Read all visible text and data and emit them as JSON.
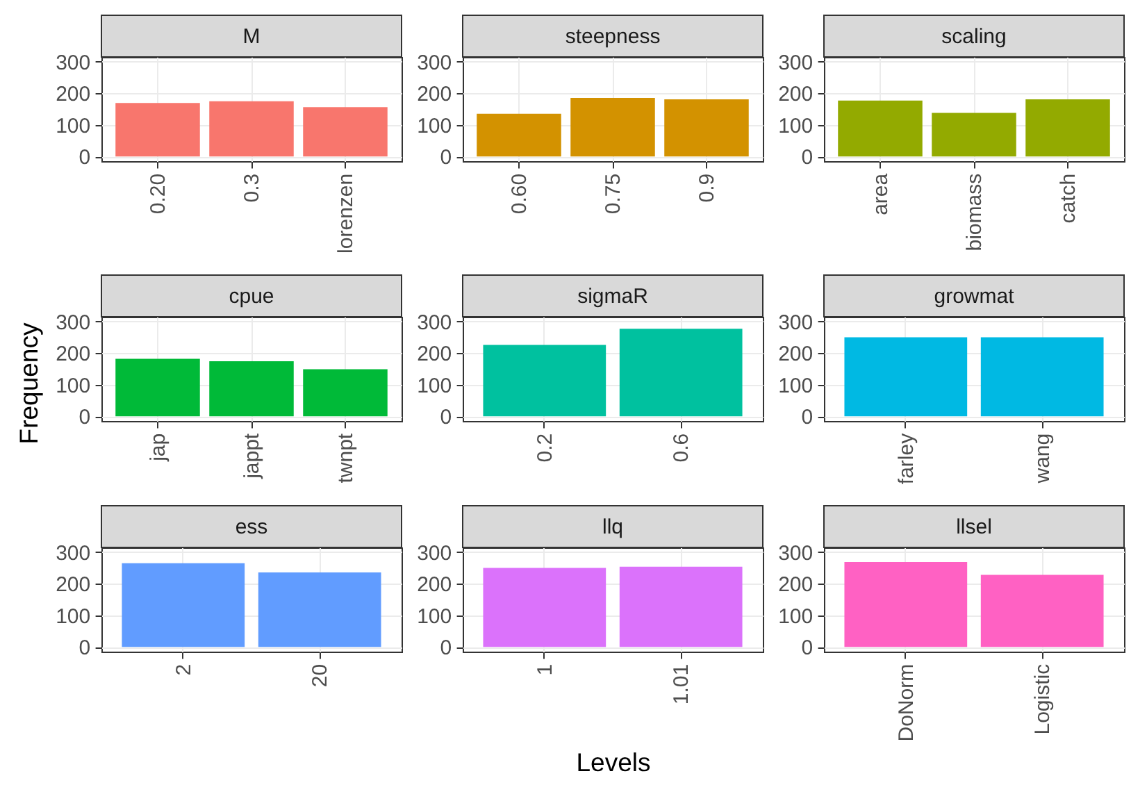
{
  "chart_data": [
    {
      "type": "bar",
      "title": "M",
      "categories": [
        "0.20",
        "0.3",
        "lorenzen"
      ],
      "values": [
        169,
        175,
        156
      ],
      "color": "#f8766d",
      "ylim": [
        -15,
        315
      ],
      "yticks": [
        0,
        100,
        200,
        300
      ],
      "grid": true
    },
    {
      "type": "bar",
      "title": "steepness",
      "categories": [
        "0.60",
        "0.75",
        "0.9"
      ],
      "values": [
        135,
        185,
        181
      ],
      "color": "#d39200",
      "ylim": [
        -15,
        315
      ],
      "yticks": [
        0,
        100,
        200,
        300
      ],
      "grid": true
    },
    {
      "type": "bar",
      "title": "scaling",
      "categories": [
        "area",
        "biomass",
        "catch"
      ],
      "values": [
        177,
        138,
        181
      ],
      "color": "#93aa00",
      "ylim": [
        -15,
        315
      ],
      "yticks": [
        0,
        100,
        200,
        300
      ],
      "grid": true
    },
    {
      "type": "bar",
      "title": "cpue",
      "ylabel": "Frequency",
      "categories": [
        "jap",
        "jappt",
        "twnpt"
      ],
      "values": [
        182,
        174,
        149
      ],
      "color": "#00ba38",
      "ylim": [
        -15,
        315
      ],
      "yticks": [
        0,
        100,
        200,
        300
      ],
      "grid": true
    },
    {
      "type": "bar",
      "title": "sigmaR",
      "categories": [
        "0.2",
        "0.6"
      ],
      "values": [
        226,
        277
      ],
      "color": "#00c19f",
      "ylim": [
        -15,
        315
      ],
      "yticks": [
        0,
        100,
        200,
        300
      ],
      "grid": true
    },
    {
      "type": "bar",
      "title": "growmat",
      "categories": [
        "farley",
        "wang"
      ],
      "values": [
        250,
        250
      ],
      "color": "#00b9e3",
      "ylim": [
        -15,
        315
      ],
      "yticks": [
        0,
        100,
        200,
        300
      ],
      "grid": true
    },
    {
      "type": "bar",
      "title": "ess",
      "categories": [
        "2",
        "20"
      ],
      "values": [
        265,
        236
      ],
      "color": "#619cff",
      "ylim": [
        -15,
        315
      ],
      "yticks": [
        0,
        100,
        200,
        300
      ],
      "grid": true
    },
    {
      "type": "bar",
      "title": "llq",
      "xlabel": "Levels",
      "categories": [
        "1",
        "1.01"
      ],
      "values": [
        250,
        254
      ],
      "color": "#db72fb",
      "ylim": [
        -15,
        315
      ],
      "yticks": [
        0,
        100,
        200,
        300
      ],
      "grid": true
    },
    {
      "type": "bar",
      "title": "llsel",
      "categories": [
        "DoNorm",
        "Logistic"
      ],
      "values": [
        269,
        228
      ],
      "color": "#ff61c3",
      "ylim": [
        -15,
        315
      ],
      "yticks": [
        0,
        100,
        200,
        300
      ],
      "grid": true
    }
  ]
}
